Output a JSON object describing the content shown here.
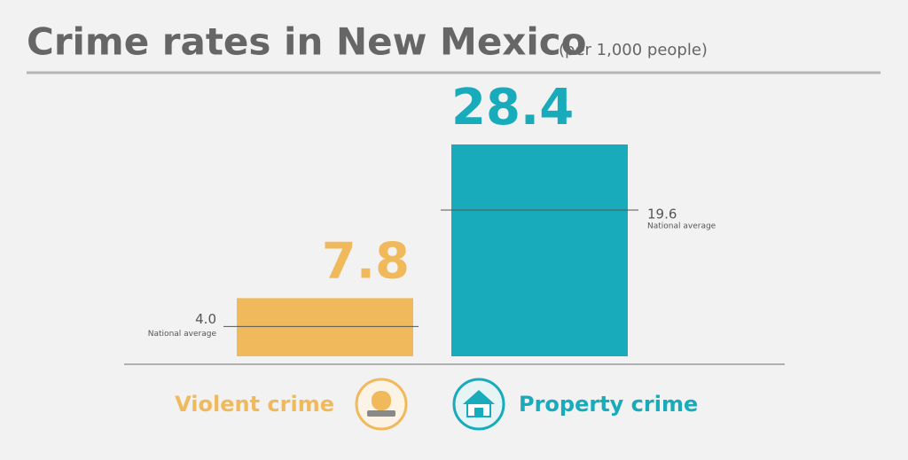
{
  "chart_data": {
    "type": "bar",
    "title": "Crime rates in New Mexico",
    "subtitle": "(per 1,000 people)",
    "categories": [
      "Violent crime",
      "Property crime"
    ],
    "values": [
      7.8,
      28.4
    ],
    "colors": [
      "#f0b95c",
      "#18abbb"
    ],
    "national_averages": [
      {
        "value": 4,
        "label": "4.0"
      },
      19.6
    ],
    "national_average_label": "National average"
  }
}
